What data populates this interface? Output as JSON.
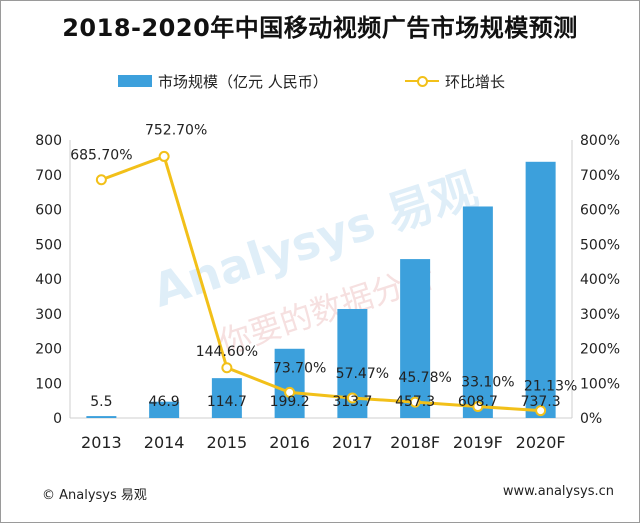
{
  "title": "2018-2020年中国移动视频广告市场规模预测",
  "legend": {
    "bar_label": "市场规模（亿元 人民币）",
    "line_label": "环比增长"
  },
  "footer": {
    "left": "© Analysys 易观",
    "right": "www.analysys.cn"
  },
  "watermark": {
    "brand": "Analysys 易观",
    "slogan": "你要的数据分析"
  },
  "colors": {
    "bar": "#3ca0dc",
    "line": "#f2c019",
    "axis": "#cfcfcf",
    "text": "#222222"
  },
  "chart_data": {
    "type": "bar",
    "categories": [
      "2013",
      "2014",
      "2015",
      "2016",
      "2017",
      "2018F",
      "2019F",
      "2020F"
    ],
    "series": [
      {
        "name": "市场规模（亿元 人民币）",
        "type": "bar",
        "axis": "left",
        "values": [
          5.5,
          46.9,
          114.7,
          199.2,
          313.7,
          457.3,
          608.7,
          737.3
        ],
        "labels": [
          "5.5",
          "46.9",
          "114.7",
          "199.2",
          "313.7",
          "457.3",
          "608.7",
          "737.3"
        ]
      },
      {
        "name": "环比增长",
        "type": "line",
        "axis": "right",
        "values": [
          685.7,
          752.7,
          144.6,
          73.7,
          57.47,
          45.78,
          33.1,
          21.13
        ],
        "labels": [
          "685.70%",
          "752.70%",
          "144.60%",
          "73.70%",
          "57.47%",
          "45.78%",
          "33.10%",
          "21.13%"
        ]
      }
    ],
    "y_left": {
      "min": 0,
      "max": 800,
      "ticks": [
        "0",
        "100",
        "200",
        "300",
        "400",
        "500",
        "600",
        "700",
        "800"
      ]
    },
    "y_right": {
      "min": 0,
      "max": 800,
      "ticks": [
        "0%",
        "100%",
        "200%",
        "300%",
        "400%",
        "500%",
        "600%",
        "700%",
        "800%"
      ]
    },
    "grid": false,
    "legend_position": "top"
  }
}
